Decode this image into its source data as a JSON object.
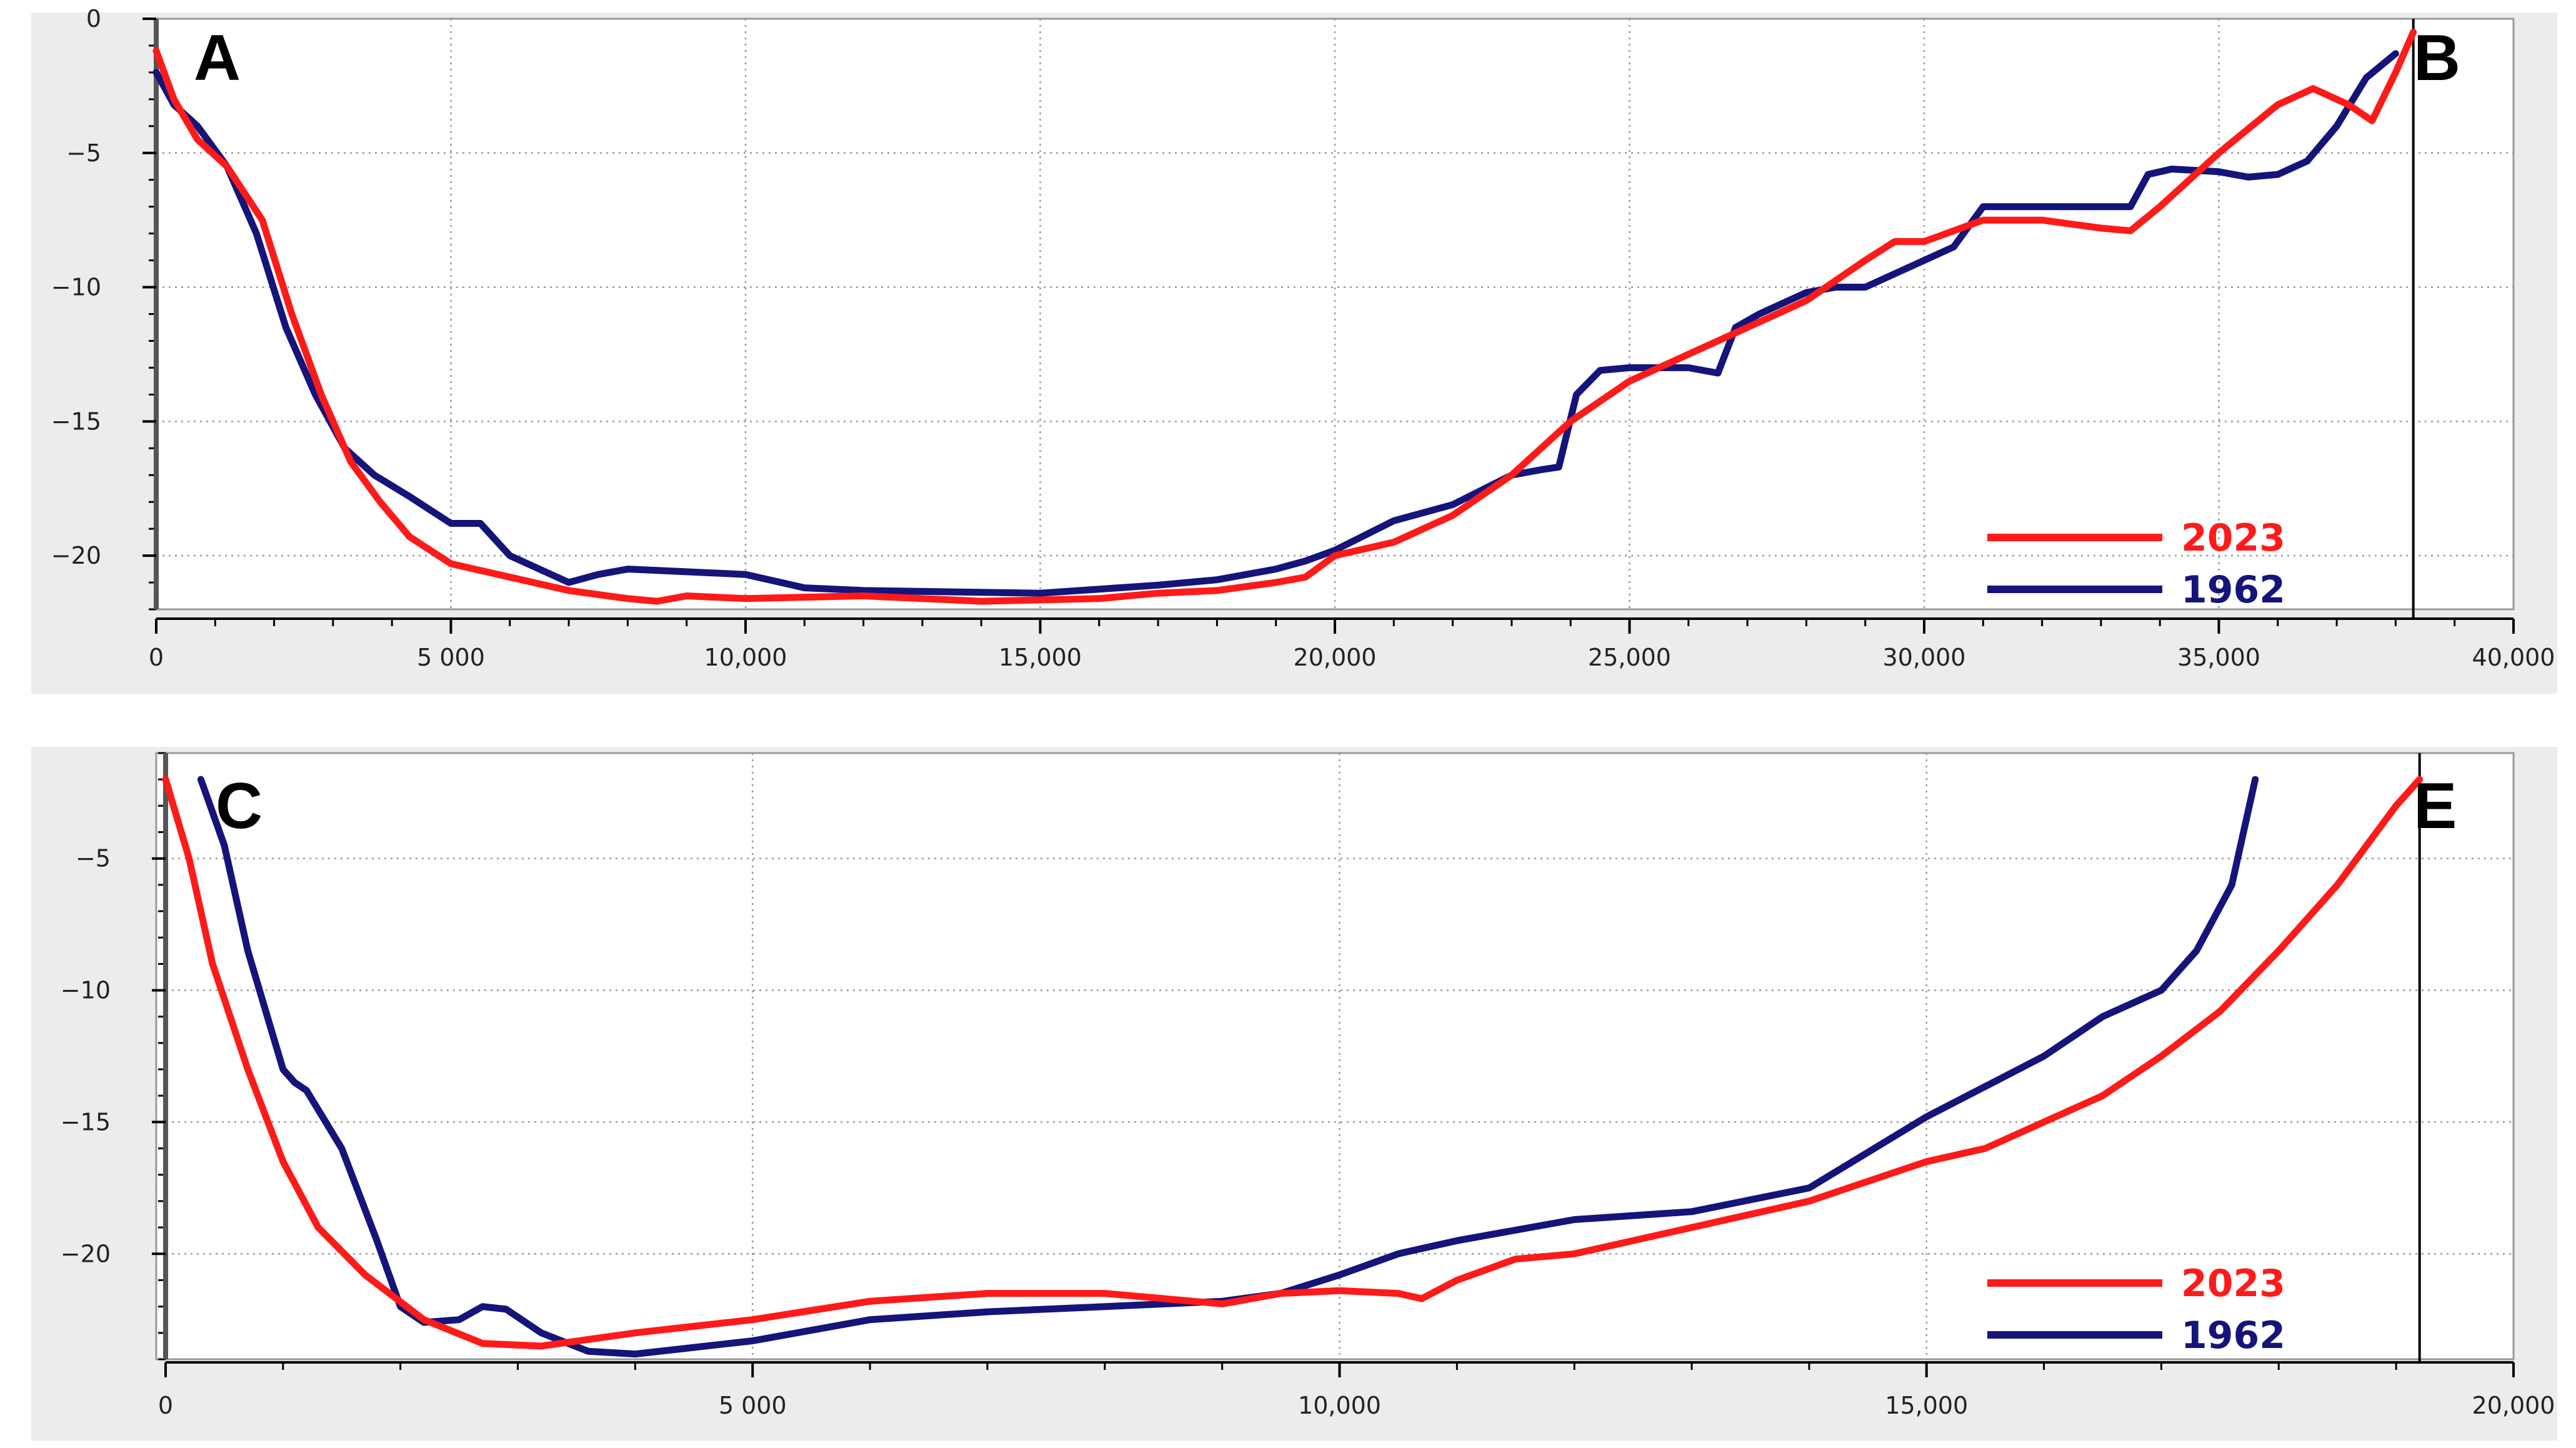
{
  "colors": {
    "series_2023": "#ff1a1a",
    "series_1962": "#14147a",
    "plot_bg": "#ffffff",
    "frame_bg": "#ececec",
    "grid": "#9a9a9a"
  },
  "chart_data": [
    {
      "type": "line",
      "panel_labels": {
        "start": "A",
        "end": "B"
      },
      "xlim": [
        0,
        40000
      ],
      "ylim": [
        -22,
        0
      ],
      "x_ticks": [
        0,
        5000,
        10000,
        15000,
        20000,
        25000,
        30000,
        35000,
        40000
      ],
      "x_tick_labels": [
        "0",
        "5 000",
        "10,000",
        "15,000",
        "20,000",
        "25,000",
        "30,000",
        "35,000",
        "40,000"
      ],
      "y_ticks": [
        0,
        -5,
        -10,
        -15,
        -20
      ],
      "y_tick_labels": [
        "0",
        "−5",
        "−10",
        "−15",
        "−20"
      ],
      "grid": true,
      "legend_position": "bottom-right",
      "end_marker_x": 38300,
      "series": [
        {
          "name": "2023",
          "color": "#ff1a1a",
          "x": [
            0,
            300,
            700,
            1200,
            1800,
            2300,
            2800,
            3300,
            3800,
            4300,
            5000,
            6000,
            7000,
            8000,
            8500,
            9000,
            10000,
            12000,
            14000,
            16000,
            17000,
            18000,
            19000,
            19500,
            20000,
            21000,
            22000,
            23000,
            24000,
            25000,
            26000,
            27000,
            28000,
            29000,
            29500,
            30000,
            31000,
            32000,
            33000,
            33500,
            34000,
            35000,
            36000,
            36600,
            37200,
            37600,
            38000,
            38300
          ],
          "y": [
            -1.2,
            -3,
            -4.5,
            -5.5,
            -7.5,
            -11,
            -14,
            -16.5,
            -18,
            -19.3,
            -20.3,
            -20.8,
            -21.3,
            -21.6,
            -21.7,
            -21.5,
            -21.6,
            -21.5,
            -21.7,
            -21.6,
            -21.4,
            -21.3,
            -21.0,
            -20.8,
            -20.0,
            -19.5,
            -18.5,
            -17.0,
            -15.0,
            -13.5,
            -12.5,
            -11.5,
            -10.5,
            -9.0,
            -8.3,
            -8.3,
            -7.5,
            -7.5,
            -7.8,
            -7.9,
            -7.0,
            -5.0,
            -3.2,
            -2.6,
            -3.2,
            -3.8,
            -2.0,
            -0.5
          ]
        },
        {
          "name": "1962",
          "color": "#14147a",
          "x": [
            0,
            300,
            700,
            1200,
            1700,
            2200,
            2700,
            3200,
            3700,
            4300,
            5000,
            5500,
            6000,
            7000,
            7500,
            8000,
            9000,
            10000,
            11000,
            12000,
            15000,
            17000,
            18000,
            19000,
            19500,
            20000,
            21000,
            22000,
            23000,
            23500,
            23800,
            24100,
            24500,
            25000,
            26000,
            26500,
            26800,
            27200,
            28000,
            28500,
            29000,
            30000,
            30500,
            31000,
            32000,
            33000,
            33500,
            33800,
            34200,
            35000,
            35500,
            36000,
            36500,
            37000,
            37500,
            38000
          ],
          "y": [
            -2.0,
            -3.2,
            -4.0,
            -5.5,
            -8.0,
            -11.5,
            -14.0,
            -16.0,
            -17.0,
            -17.8,
            -18.8,
            -18.8,
            -20.0,
            -21.0,
            -20.7,
            -20.5,
            -20.6,
            -20.7,
            -21.2,
            -21.3,
            -21.4,
            -21.1,
            -20.9,
            -20.5,
            -20.2,
            -19.8,
            -18.7,
            -18.1,
            -17.0,
            -16.8,
            -16.7,
            -14.0,
            -13.1,
            -13.0,
            -13.0,
            -13.2,
            -11.5,
            -11.0,
            -10.2,
            -10.0,
            -10.0,
            -9.0,
            -8.5,
            -7.0,
            -7.0,
            -7.0,
            -7.0,
            -5.8,
            -5.6,
            -5.7,
            -5.9,
            -5.8,
            -5.3,
            -4.0,
            -2.2,
            -1.3
          ]
        }
      ]
    },
    {
      "type": "line",
      "panel_labels": {
        "start": "C",
        "end": "E"
      },
      "xlim": [
        0,
        20000
      ],
      "ylim": [
        -24,
        -1
      ],
      "x_ticks": [
        0,
        5000,
        10000,
        15000,
        20000
      ],
      "x_tick_labels": [
        "0",
        "5 000",
        "10,000",
        "15,000",
        "20,000"
      ],
      "y_ticks": [
        -5,
        -10,
        -15,
        -20
      ],
      "y_tick_labels": [
        "−5",
        "−10",
        "−15",
        "−20"
      ],
      "grid": true,
      "legend_position": "bottom-right",
      "end_marker_x": 19200,
      "series": [
        {
          "name": "2023",
          "color": "#ff1a1a",
          "x": [
            0,
            200,
            400,
            700,
            1000,
            1300,
            1700,
            2200,
            2700,
            3200,
            4000,
            5000,
            6000,
            7000,
            8000,
            9000,
            9500,
            10000,
            10500,
            10700,
            11000,
            11500,
            12000,
            13000,
            14000,
            15000,
            15500,
            16000,
            16500,
            17000,
            17500,
            18000,
            18500,
            19000,
            19200
          ],
          "y": [
            -2.0,
            -5.0,
            -9.0,
            -13.0,
            -16.5,
            -19.0,
            -20.8,
            -22.5,
            -23.4,
            -23.5,
            -23.0,
            -22.5,
            -21.8,
            -21.5,
            -21.5,
            -21.9,
            -21.5,
            -21.4,
            -21.5,
            -21.7,
            -21.0,
            -20.2,
            -20.0,
            -19.0,
            -18.0,
            -16.5,
            -16.0,
            -15.0,
            -14.0,
            -12.5,
            -10.8,
            -8.5,
            -6.0,
            -3.0,
            -2.0
          ]
        },
        {
          "name": "1962",
          "color": "#14147a",
          "x": [
            300,
            500,
            700,
            900,
            1000,
            1100,
            1200,
            1500,
            1800,
            2000,
            2200,
            2500,
            2700,
            2900,
            3200,
            3600,
            4000,
            5000,
            6000,
            7000,
            8000,
            9000,
            9500,
            10000,
            10500,
            11000,
            12000,
            13000,
            14000,
            15000,
            16000,
            16500,
            17000,
            17300,
            17600,
            17800
          ],
          "y": [
            -2.0,
            -4.5,
            -8.5,
            -11.5,
            -13.0,
            -13.5,
            -13.8,
            -16.0,
            -19.5,
            -22.0,
            -22.6,
            -22.5,
            -22.0,
            -22.1,
            -23.0,
            -23.7,
            -23.8,
            -23.3,
            -22.5,
            -22.2,
            -22.0,
            -21.8,
            -21.5,
            -20.8,
            -20.0,
            -19.5,
            -18.7,
            -18.4,
            -17.5,
            -14.8,
            -12.5,
            -11.0,
            -10.0,
            -8.5,
            -6.0,
            -2.0
          ]
        }
      ]
    }
  ]
}
